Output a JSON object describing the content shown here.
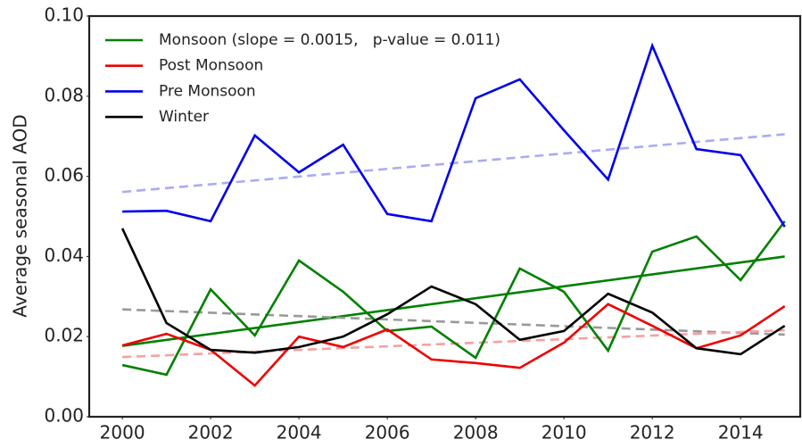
{
  "chart_data": {
    "type": "line",
    "ylabel": "Average seasonal AOD",
    "x": [
      2000,
      2001,
      2002,
      2003,
      2004,
      2005,
      2006,
      2007,
      2008,
      2009,
      2010,
      2011,
      2012,
      2013,
      2014,
      2015
    ],
    "xlim": [
      1999.25,
      2015.35
    ],
    "xticks": [
      2000,
      2002,
      2004,
      2006,
      2008,
      2010,
      2012,
      2014
    ],
    "ylim": [
      0,
      0.1
    ],
    "yticks": [
      {
        "value": 0,
        "label": "0.00"
      },
      0.02,
      0.04,
      0.06,
      0.08,
      {
        "value": 0.1,
        "label": "0.10"
      }
    ],
    "legend": "upper left",
    "series": [
      {
        "name": "Monsoon (slope = 0.0015,   p-value = 0.011)",
        "color": "#008000",
        "values": [
          0.0129,
          0.0105,
          0.0318,
          0.0203,
          0.039,
          0.0312,
          0.0214,
          0.0225,
          0.0147,
          0.037,
          0.0312,
          0.0165,
          0.0412,
          0.045,
          0.0341,
          0.0488
        ]
      },
      {
        "name": "Post Monsoon",
        "color": "#ee0000",
        "values": [
          0.0178,
          0.0207,
          0.0167,
          0.0078,
          0.02,
          0.0174,
          0.0218,
          0.0143,
          0.0134,
          0.0122,
          0.0185,
          0.0281,
          0.0227,
          0.0171,
          0.0203,
          0.0276
        ]
      },
      {
        "name": "Pre Monsoon",
        "color": "#0000ee",
        "values": [
          0.0512,
          0.0514,
          0.0488,
          0.0702,
          0.061,
          0.0679,
          0.0506,
          0.0488,
          0.0795,
          0.0842,
          0.0715,
          0.0592,
          0.0926,
          0.0668,
          0.0653,
          0.0474
        ]
      },
      {
        "name": "Winter",
        "color": "#000000",
        "values": [
          0.047,
          0.0234,
          0.0167,
          0.016,
          0.0174,
          0.02,
          0.0256,
          0.0325,
          0.0281,
          0.0192,
          0.0214,
          0.0307,
          0.026,
          0.0171,
          0.0156,
          0.0227
        ]
      }
    ],
    "trends": [
      {
        "color": "#008000",
        "dashed": false,
        "x": [
          2000,
          2015
        ],
        "values": [
          0.0177,
          0.04
        ]
      },
      {
        "color": "#aaaaf5",
        "dashed": true,
        "x": [
          2000,
          2015
        ],
        "values": [
          0.0561,
          0.0705
        ]
      },
      {
        "color": "#999999",
        "dashed": true,
        "x": [
          2000,
          2015
        ],
        "values": [
          0.0268,
          0.0205
        ]
      },
      {
        "color": "#f5a0a0",
        "dashed": true,
        "x": [
          2000,
          2015
        ],
        "values": [
          0.0149,
          0.0216
        ]
      }
    ]
  }
}
